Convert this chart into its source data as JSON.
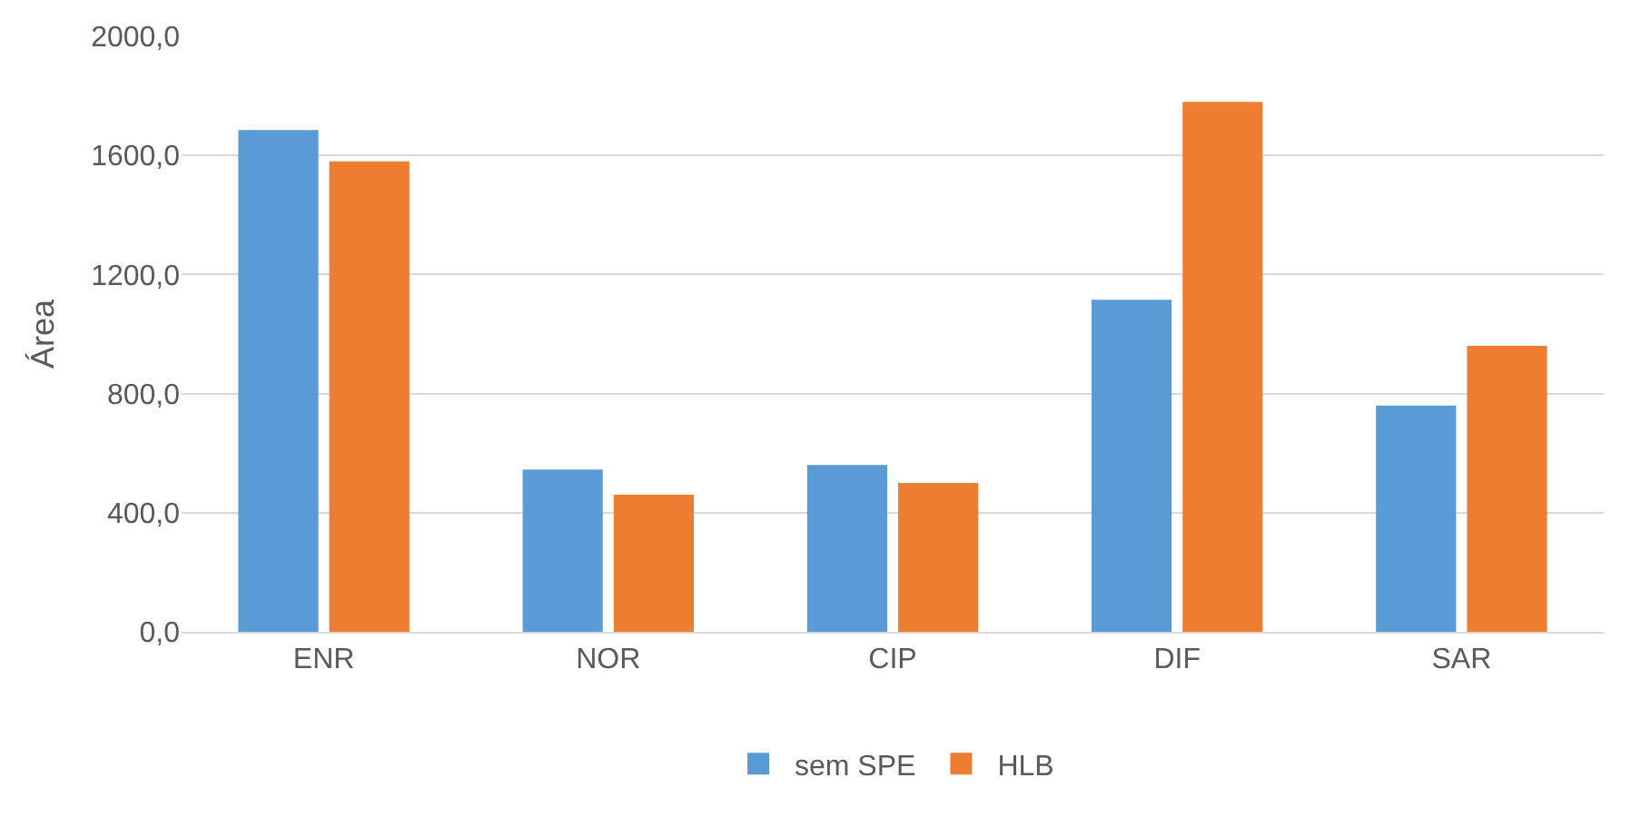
{
  "chart_data": {
    "type": "bar",
    "ylabel": "Área",
    "categories": [
      "ENR",
      "NOR",
      "CIP",
      "DIF",
      "SAR"
    ],
    "series": [
      {
        "name": "sem SPE",
        "color": "#5b9bd5",
        "values": [
          1685,
          545,
          560,
          1115,
          760
        ]
      },
      {
        "name": "HLB",
        "color": "#ed7d31",
        "values": [
          1580,
          460,
          500,
          1780,
          960
        ]
      }
    ],
    "ylim": [
      0,
      2000
    ],
    "yticks": [
      {
        "value": 0,
        "label": "0,0"
      },
      {
        "value": 400,
        "label": "400,0"
      },
      {
        "value": 800,
        "label": "800,0"
      },
      {
        "value": 1200,
        "label": "1200,0"
      },
      {
        "value": 1600,
        "label": "1600,0"
      },
      {
        "value": 2000,
        "label": "2000,0"
      }
    ],
    "grid": "y",
    "legend": "bottom"
  }
}
